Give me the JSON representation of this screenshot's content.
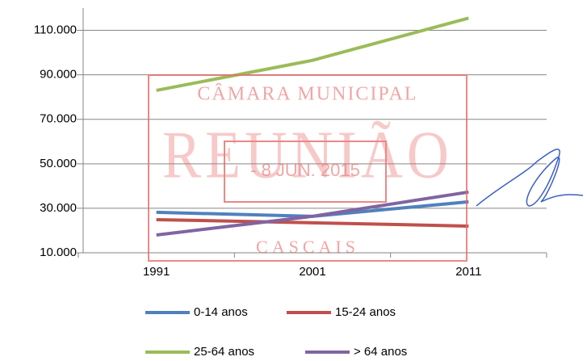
{
  "chart_data": {
    "type": "line",
    "categories": [
      "1991",
      "2001",
      "2011"
    ],
    "series": [
      {
        "name": "0-14 anos",
        "color": "#4f81bd",
        "values": [
          28200,
          26400,
          32900
        ]
      },
      {
        "name": "15-24 anos",
        "color": "#c0504d",
        "values": [
          24900,
          23500,
          22000
        ]
      },
      {
        "name": "25-64 anos",
        "color": "#9bbb59",
        "values": [
          83000,
          96500,
          115500
        ]
      },
      {
        "name": "> 64 anos",
        "color": "#8064a2",
        "values": [
          18000,
          26400,
          37300
        ]
      }
    ],
    "ylim": [
      10000,
      120000
    ],
    "yticks": [
      {
        "value": 10000,
        "label": "10.000"
      },
      {
        "value": 30000,
        "label": "30.000"
      },
      {
        "value": 50000,
        "label": "50.000"
      },
      {
        "value": 70000,
        "label": "70.000"
      },
      {
        "value": 90000,
        "label": "90.000"
      },
      {
        "value": 110000,
        "label": "110.000"
      }
    ],
    "grid": true,
    "legend": "bottom"
  },
  "stamp": {
    "top": "CÂMARA MUNICIPAL",
    "middle": "REUNIÃO",
    "date": "- 8 JUN. 2015",
    "bottom": "CASCAIS"
  }
}
